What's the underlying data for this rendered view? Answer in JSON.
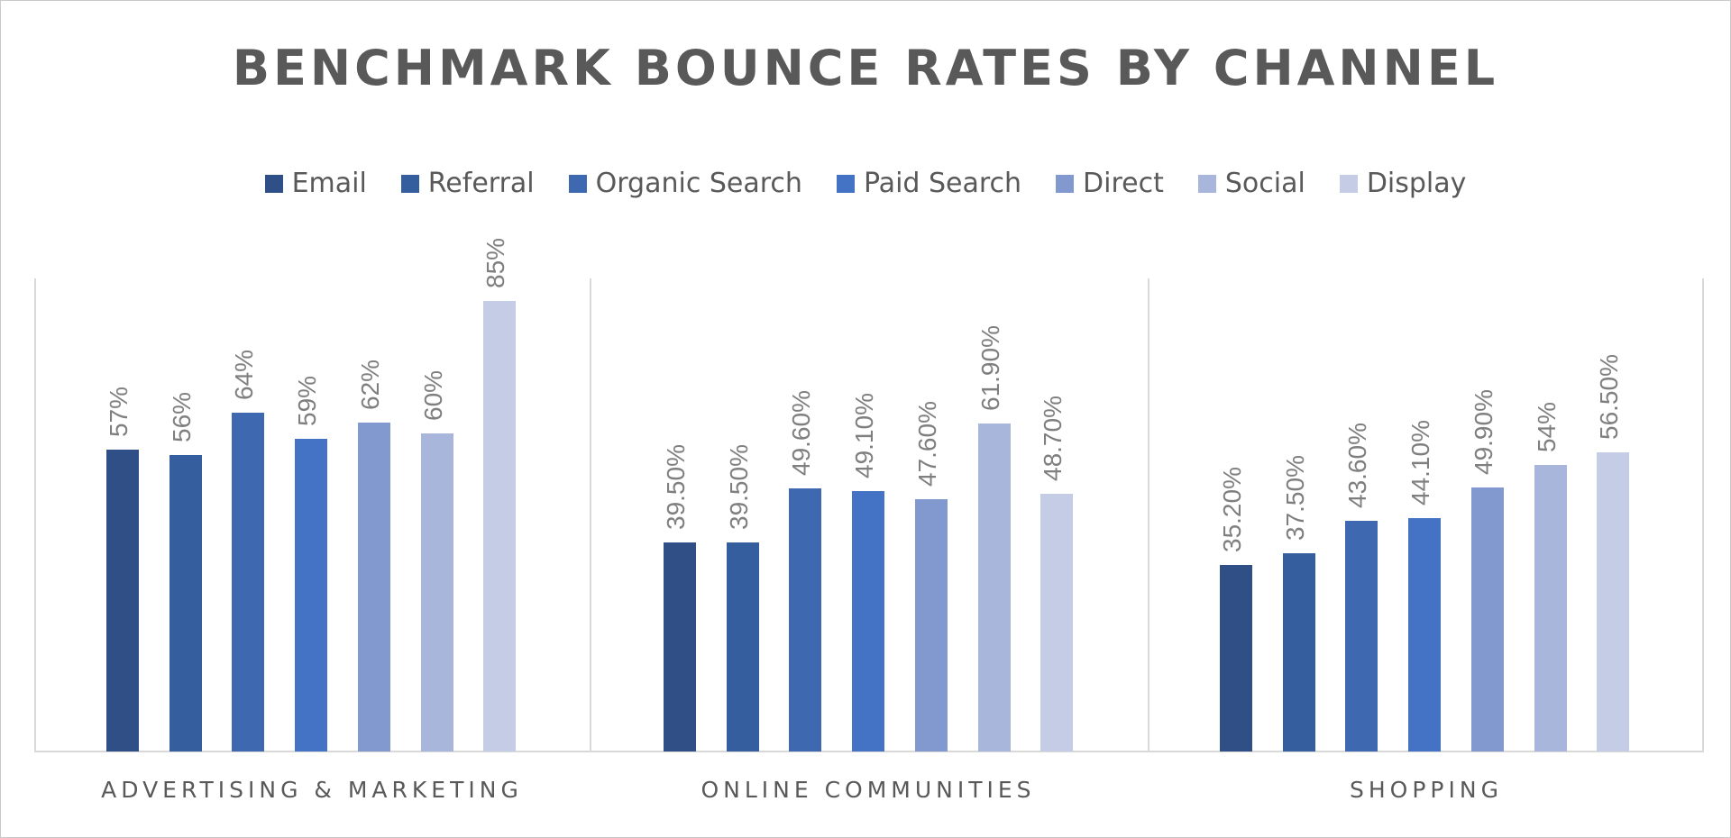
{
  "title": "BENCHMARK BOUNCE RATES BY CHANNEL",
  "legend": [
    {
      "label": "Email",
      "color": "#2f4f86"
    },
    {
      "label": "Referral",
      "color": "#355e9e"
    },
    {
      "label": "Organic Search",
      "color": "#3e68b0"
    },
    {
      "label": "Paid Search",
      "color": "#4472c4"
    },
    {
      "label": "Direct",
      "color": "#8199cf"
    },
    {
      "label": "Social",
      "color": "#a7b6da"
    },
    {
      "label": "Display",
      "color": "#c5cde6"
    }
  ],
  "categories": [
    "ADVERTISING & MARKETING",
    "ONLINE COMMUNITIES",
    "SHOPPING"
  ],
  "chart_data": {
    "type": "bar",
    "title": "BENCHMARK BOUNCE RATES BY CHANNEL",
    "xlabel": "",
    "ylabel": "",
    "categories": [
      "ADVERTISING & MARKETING",
      "ONLINE COMMUNITIES",
      "SHOPPING"
    ],
    "series": [
      {
        "name": "Email",
        "values": [
          57,
          39.5,
          35.2
        ],
        "labels": [
          "57%",
          "39.50%",
          "35.20%"
        ]
      },
      {
        "name": "Referral",
        "values": [
          56,
          39.5,
          37.5
        ],
        "labels": [
          "56%",
          "39.50%",
          "37.50%"
        ]
      },
      {
        "name": "Organic Search",
        "values": [
          64,
          49.6,
          43.6
        ],
        "labels": [
          "64%",
          "49.60%",
          "43.60%"
        ]
      },
      {
        "name": "Paid Search",
        "values": [
          59,
          49.1,
          44.1
        ],
        "labels": [
          "59%",
          "49.10%",
          "44.10%"
        ]
      },
      {
        "name": "Direct",
        "values": [
          62,
          47.6,
          49.9
        ],
        "labels": [
          "62%",
          "47.60%",
          "49.90%"
        ]
      },
      {
        "name": "Social",
        "values": [
          60,
          61.9,
          54
        ],
        "labels": [
          "60%",
          "61.90%",
          "54%"
        ]
      },
      {
        "name": "Display",
        "values": [
          85,
          48.7,
          56.5
        ],
        "labels": [
          "85%",
          "48.70%",
          "56.50%"
        ]
      }
    ],
    "legend_position": "top",
    "grid": false,
    "ylim": [
      0,
      90
    ],
    "data_labels": "rotated -90, above bars"
  }
}
